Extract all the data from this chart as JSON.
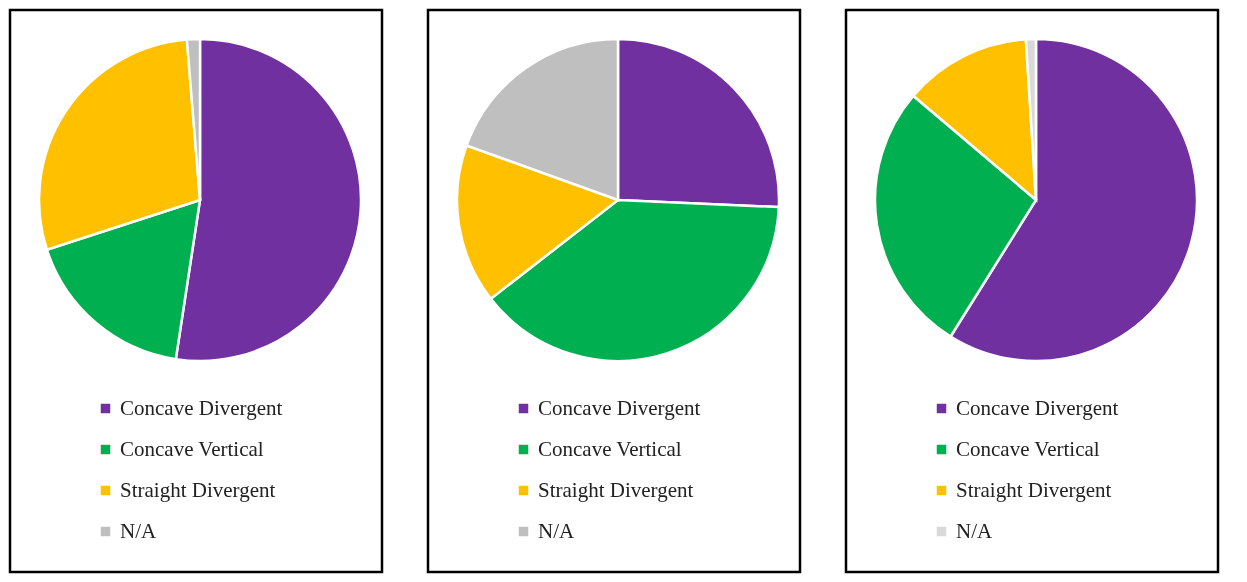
{
  "chart_data": [
    {
      "type": "pie",
      "categories": [
        "Concave Divergent",
        "Concave Vertical",
        "Straight Divergent",
        "N/A"
      ],
      "values": [
        52.4,
        17.6,
        28.7,
        1.3
      ],
      "colors": [
        "#7030a0",
        "#00b050",
        "#ffc000",
        "#bfbfbf"
      ],
      "legend": "bottom"
    },
    {
      "type": "pie",
      "categories": [
        "Concave Divergent",
        "Concave Vertical",
        "Straight Divergent",
        "N/A"
      ],
      "values": [
        25.7,
        38.8,
        16.0,
        19.5
      ],
      "colors": [
        "#7030a0",
        "#00b050",
        "#ffc000",
        "#bfbfbf"
      ],
      "legend": "bottom"
    },
    {
      "type": "pie",
      "categories": [
        "Concave Divergent",
        "Concave Vertical",
        "Straight Divergent",
        "N/A"
      ],
      "values": [
        58.9,
        27.3,
        12.8,
        1.0
      ],
      "colors": [
        "#7030a0",
        "#00b050",
        "#ffc000",
        "#d9d9d9"
      ],
      "legend": "bottom"
    }
  ]
}
